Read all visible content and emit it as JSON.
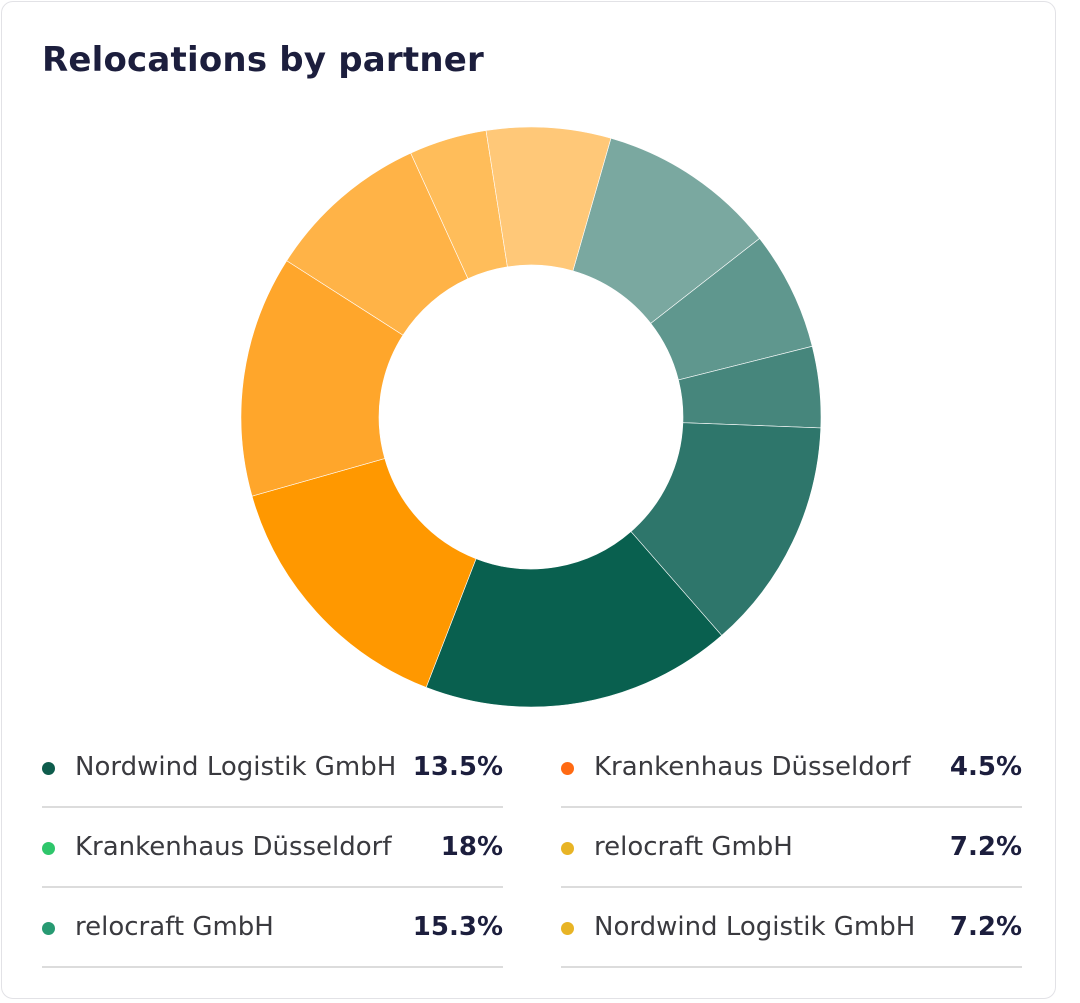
{
  "card": {
    "title": "Relocations by partner"
  },
  "chart_data": {
    "type": "pie",
    "variant": "donut",
    "title": "Relocations by partner",
    "start_angle_deg": 16,
    "direction": "clockwise",
    "slices": [
      {
        "color": "#7aa8a0",
        "value": 10.4
      },
      {
        "color": "#5f978e",
        "value": 6.9
      },
      {
        "color": "#46867c",
        "value": 4.7
      },
      {
        "color": "#2e766b",
        "value": 13.5
      },
      {
        "color": "#09604f",
        "value": 18.0
      },
      {
        "color": "#ff9800",
        "value": 15.3
      },
      {
        "color": "#ffa62b",
        "value": 14.0
      },
      {
        "color": "#ffb347",
        "value": 9.5
      },
      {
        "color": "#ffbd5a",
        "value": 4.5
      },
      {
        "color": "#ffc878",
        "value": 7.2
      }
    ]
  },
  "legend": {
    "items": [
      {
        "label": "Nordwind Logistik GmbH",
        "percent": "13.5%",
        "color": "#0e5c4c"
      },
      {
        "label": "Krankenhaus Düsseldorf",
        "percent": "18%",
        "color": "#2ec66b"
      },
      {
        "label": "relocraft GmbH",
        "percent": "15.3%",
        "color": "#279a72"
      },
      {
        "label": "Krankenhaus Düsseldorf",
        "percent": "4.5%",
        "color": "#ff6a13"
      },
      {
        "label": "relocraft GmbH",
        "percent": "7.2%",
        "color": "#e8b425"
      },
      {
        "label": "Nordwind Logistik GmbH",
        "percent": "7.2%",
        "color": "#e8b425"
      }
    ]
  }
}
